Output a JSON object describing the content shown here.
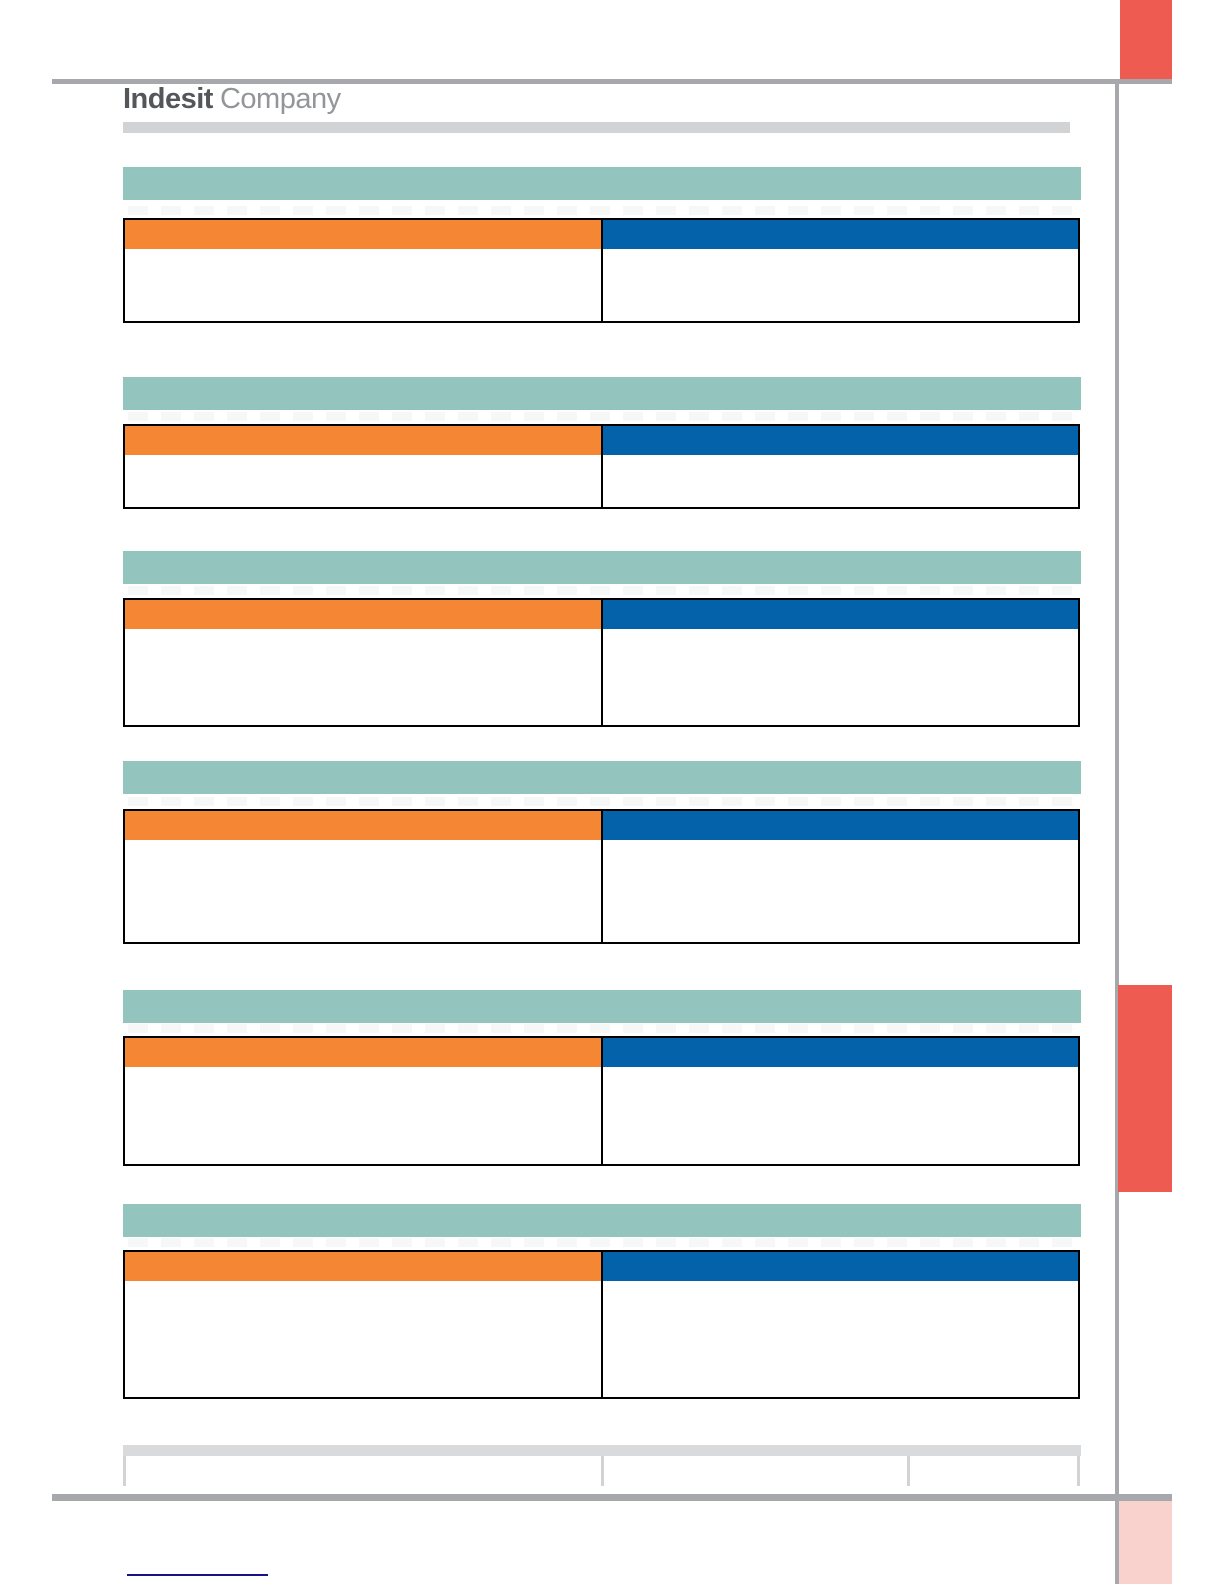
{
  "document": {
    "brand": {
      "bold": "Indesit",
      "regular": "Company"
    },
    "page_type": "blank template with six section tables, no visible body text"
  },
  "sections": [
    {
      "id": "section-1"
    },
    {
      "id": "section-2"
    },
    {
      "id": "section-3"
    },
    {
      "id": "section-4"
    },
    {
      "id": "section-5"
    },
    {
      "id": "section-6"
    }
  ],
  "footer": {
    "column_count": 3
  },
  "colors": {
    "teal": "#93c4be",
    "orange": "#f58634",
    "blue": "#0462ab",
    "coral": "#ee5c51",
    "pink": "#f9d2cd",
    "rule_gray": "#a6a8ab",
    "logo_bar_gray": "#d2d3d4",
    "footer_bar_gray": "#d9dadb",
    "footer_divider_gray": "#d2d3d4",
    "link_navy": "#141487",
    "logo_dark": "#55565a",
    "logo_light": "#939598"
  }
}
